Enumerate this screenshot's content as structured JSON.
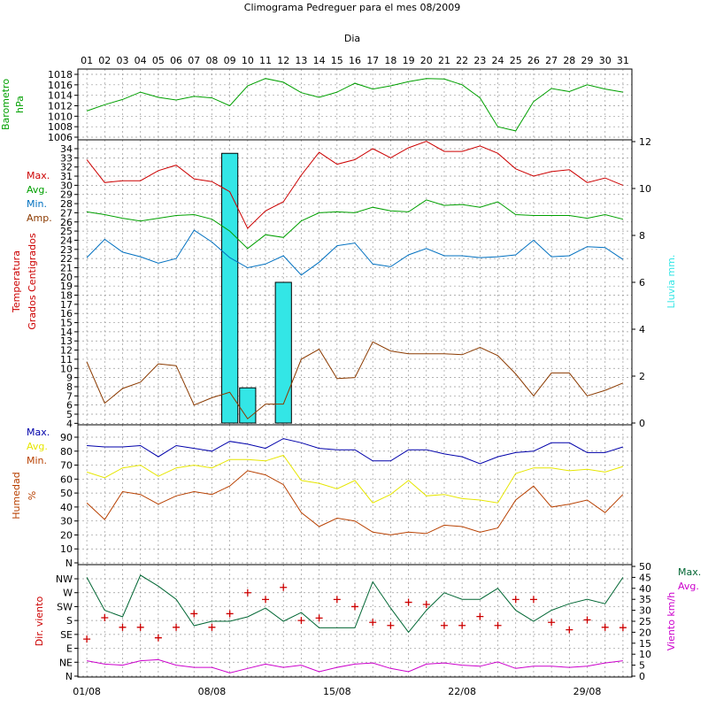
{
  "title": "Climograma Pedreguer para el mes 08/2009",
  "top_axis_label": "Dia",
  "days": [
    "01",
    "02",
    "03",
    "04",
    "05",
    "06",
    "07",
    "08",
    "09",
    "10",
    "11",
    "12",
    "13",
    "14",
    "15",
    "16",
    "17",
    "18",
    "19",
    "20",
    "21",
    "22",
    "23",
    "24",
    "25",
    "26",
    "27",
    "28",
    "29",
    "30",
    "31"
  ],
  "bottom_dates": [
    "01/08",
    "08/08",
    "15/08",
    "22/08",
    "29/08"
  ],
  "colors": {
    "red": "#cc0000",
    "green": "#00a000",
    "blue": "#0070c0",
    "brown": "#8b3a00",
    "cyan": "#33e6e6",
    "navy": "#0000aa",
    "yellow": "#e6e600",
    "darkgreen": "#006633",
    "magenta": "#cc00cc"
  },
  "chart_data": [
    {
      "type": "line",
      "panel": "barometer",
      "ylabel": [
        "Barometro",
        "hPa"
      ],
      "yticks": [
        "1018",
        "1016",
        "1014",
        "1012",
        "1010",
        "1008",
        "1006"
      ],
      "ylim": [
        1006,
        1019
      ],
      "series": [
        {
          "values": [
            1011,
            1012.2,
            1013.2,
            1014.6,
            1013.6,
            1013.1,
            1013.8,
            1013.5,
            1012,
            1015.8,
            1017.2,
            1016.5,
            1014.5,
            1013.6,
            1014.6,
            1016.3,
            1015.2,
            1015.8,
            1016.6,
            1017.2,
            1017.1,
            1016,
            1013.5,
            1008,
            1007.2,
            1012.8,
            1015.3,
            1014.7,
            1016,
            1015.2,
            1014.6
          ]
        }
      ]
    },
    {
      "type": "line+bar",
      "panel": "temperature",
      "ylabel": [
        "Temperatura",
        "Grados Centigrados"
      ],
      "y2label": "Lluvia mm.",
      "legend": [
        "Max.",
        "Avg.",
        "Min.",
        "Amp."
      ],
      "yticks": [
        "34",
        "33",
        "32",
        "31",
        "30",
        "29",
        "28",
        "27",
        "26",
        "25",
        "24",
        "23",
        "22",
        "21",
        "20",
        "19",
        "18",
        "17",
        "16",
        "15",
        "14",
        "13",
        "12",
        "11",
        "10",
        "9",
        "8",
        "7",
        "6",
        "5",
        "4"
      ],
      "ylim": [
        4,
        35
      ],
      "y2ticks": [
        "12",
        "10",
        "8",
        "6",
        "4",
        "2",
        "0"
      ],
      "y2lim": [
        0,
        12
      ],
      "series": [
        {
          "name": "Max.",
          "values": [
            32.8,
            30.3,
            30.5,
            30.5,
            31.6,
            32.2,
            30.7,
            30.4,
            29.3,
            25.3,
            27.2,
            28.2,
            31.1,
            33.6,
            32.3,
            32.8,
            34,
            33,
            34.1,
            34.8,
            33.7,
            33.7,
            34.3,
            33.5,
            31.8,
            31,
            31.5,
            31.7,
            30.3,
            30.8,
            30
          ]
        },
        {
          "name": "Avg.",
          "values": [
            27.1,
            26.8,
            26.4,
            26.1,
            26.4,
            26.7,
            26.8,
            26.3,
            25,
            23.1,
            24.6,
            24.3,
            26.1,
            27,
            27.1,
            27,
            27.6,
            27.2,
            27.1,
            28.4,
            27.8,
            27.9,
            27.6,
            28.2,
            26.8,
            26.7,
            26.7,
            26.7,
            26.4,
            26.8,
            26.3
          ]
        },
        {
          "name": "Min.",
          "values": [
            22.1,
            24.1,
            22.7,
            22.2,
            21.5,
            22,
            25.1,
            23.8,
            22.1,
            21,
            21.4,
            22.3,
            20.2,
            21.6,
            23.4,
            23.7,
            21.4,
            21.1,
            22.4,
            23.1,
            22.3,
            22.3,
            22.1,
            22.2,
            22.4,
            24,
            22.2,
            22.3,
            23.3,
            23.2,
            21.9
          ]
        },
        {
          "name": "Amp.",
          "values": [
            10.7,
            6.2,
            7.8,
            8.5,
            10.5,
            10.3,
            6,
            6.8,
            7.4,
            4.5,
            6.1,
            6.1,
            11,
            12.1,
            8.9,
            9,
            12.9,
            11.9,
            11.6,
            11.6,
            11.6,
            11.5,
            12.3,
            11.4,
            9.4,
            7,
            9.5,
            9.5,
            7,
            7.6,
            8.4
          ]
        },
        {
          "name": "Lluvia",
          "values": [
            0,
            0,
            0,
            0,
            0,
            0,
            0,
            0,
            11.5,
            1.5,
            0,
            6,
            0,
            0,
            0,
            0,
            0,
            0,
            0,
            0,
            0,
            0,
            0,
            0,
            0,
            0,
            0,
            0,
            0,
            0,
            0
          ]
        }
      ]
    },
    {
      "type": "line",
      "panel": "humidity",
      "ylabel": [
        "Humedad",
        "%"
      ],
      "legend": [
        "Max.",
        "Avg.",
        "Min."
      ],
      "yticks": [
        "90",
        "80",
        "70",
        "60",
        "50",
        "40",
        "30",
        "20",
        "10",
        "N"
      ],
      "ylim": [
        0,
        95
      ],
      "series": [
        {
          "name": "Max.",
          "values": [
            84,
            83,
            83,
            84,
            76,
            84,
            82,
            80,
            87,
            85,
            82,
            89,
            86,
            82,
            81,
            81,
            73,
            73,
            81,
            81,
            78,
            76,
            71,
            76,
            79,
            80,
            86,
            86,
            79,
            79,
            83
          ]
        },
        {
          "name": "Avg.",
          "values": [
            65,
            61,
            68,
            70,
            62,
            68,
            70,
            68,
            74,
            74,
            73,
            77,
            59,
            57,
            53,
            59,
            43,
            49,
            59,
            48,
            49,
            46,
            45,
            43,
            64,
            68,
            68,
            66,
            67,
            65,
            69
          ]
        },
        {
          "name": "Min.",
          "values": [
            43,
            31,
            51,
            49,
            42,
            48,
            51,
            49,
            55,
            66,
            63,
            56,
            36,
            26,
            32,
            30,
            22,
            20,
            22,
            21,
            27,
            26,
            22,
            25,
            45,
            55,
            40,
            42,
            45,
            36,
            49
          ]
        }
      ]
    },
    {
      "type": "line+scatter",
      "panel": "wind",
      "ylabel": "Dir. viento",
      "y2label": "Viento km/h",
      "legend": [
        "Max.",
        "Avg."
      ],
      "yticks": [
        "NW",
        "W",
        "SW",
        "S",
        "SE",
        "E",
        "NE",
        "N"
      ],
      "y2ticks": [
        "50",
        "45",
        "40",
        "35",
        "30",
        "25",
        "20",
        "15",
        "10",
        "5",
        "0"
      ],
      "y2lim": [
        0,
        50
      ],
      "direction_degrees": [
        120,
        189,
        158,
        158,
        124,
        158,
        202,
        158,
        202,
        270,
        248,
        287,
        180,
        188,
        248,
        225,
        174,
        164,
        239,
        232,
        164,
        164,
        193,
        164,
        248,
        248,
        174,
        150,
        182,
        158,
        157
      ],
      "series": [
        {
          "name": "Max.",
          "values": [
            45,
            30,
            27,
            46,
            41,
            35,
            23,
            25,
            25,
            27,
            31,
            25,
            29,
            22,
            22,
            22,
            43,
            31,
            20,
            30,
            38,
            35,
            35,
            40,
            30,
            25,
            30,
            33,
            35,
            33,
            45
          ]
        },
        {
          "name": "Avg.",
          "values": [
            7,
            5.5,
            5,
            7,
            7.5,
            5,
            4,
            4,
            1.5,
            3.5,
            5.5,
            4,
            5,
            2,
            4,
            5.5,
            6,
            3.5,
            2,
            5.5,
            6,
            5,
            4.5,
            6.5,
            3.5,
            4.5,
            4.5,
            4,
            4.5,
            6,
            7
          ]
        }
      ]
    }
  ]
}
